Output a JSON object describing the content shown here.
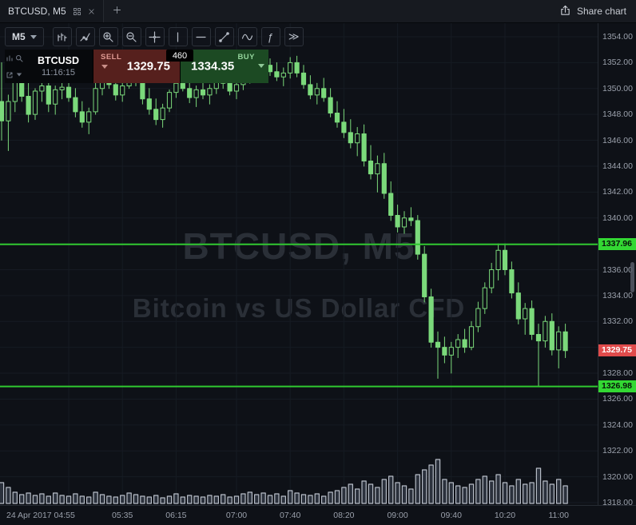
{
  "topbar": {
    "tab_title": "BTCUSD, M5",
    "share_label": "Share chart"
  },
  "toolbar": {
    "timeframe": "M5",
    "function_label": "ƒ",
    "more_label": "≫"
  },
  "instrument_panel": {
    "symbol": "BTCUSD",
    "time": "11:16:15",
    "sell_label": "SELL",
    "sell_price": "1329.75",
    "spread": "460",
    "buy_label": "BUY",
    "buy_price": "1334.35"
  },
  "watermark": {
    "line1": "BTCUSD, M5",
    "line2": "Bitcoin vs US Dollar CFD"
  },
  "price_axis": {
    "min": 1318,
    "max": 1354,
    "step": 2,
    "labels": [
      "1354.00",
      "1352.00",
      "1350.00",
      "1348.00",
      "1346.00",
      "1344.00",
      "1342.00",
      "1340.00",
      "1338.00",
      "1336.00",
      "1334.00",
      "1332.00",
      "1330.00",
      "1328.00",
      "1326.00",
      "1324.00",
      "1322.00",
      "1320.00",
      "1318.00"
    ]
  },
  "time_axis": {
    "labels": [
      {
        "text": "24 Apr 2017 04:55",
        "index": 10,
        "align": "left"
      },
      {
        "text": "05:35",
        "index": 18
      },
      {
        "text": "06:15",
        "index": 26
      },
      {
        "text": "07:00",
        "index": 35
      },
      {
        "text": "07:40",
        "index": 43
      },
      {
        "text": "08:20",
        "index": 51
      },
      {
        "text": "09:00",
        "index": 59
      },
      {
        "text": "09:40",
        "index": 67
      },
      {
        "text": "10:20",
        "index": 75
      },
      {
        "text": "11:00",
        "index": 83
      }
    ]
  },
  "levels": [
    {
      "price": 1337.96,
      "label": "1337.96"
    },
    {
      "price": 1326.98,
      "label": "1326.98"
    }
  ],
  "current_price": {
    "price": 1329.75,
    "label": "1329.75"
  },
  "colors": {
    "background": "#0e1117",
    "candle": "#7bd97b",
    "volume": "#2b313c",
    "grid": "#161b23",
    "level_line": "#30c930",
    "level_label_bg": "#33d833",
    "level_label_text": "#08140a",
    "price_label_bg": "#e04b4b",
    "price_label_text": "#ffffff",
    "axis_text": "#9aa0ab",
    "sell_bg": "#56201d",
    "buy_bg": "#1c4a23"
  },
  "chart_data": {
    "type": "candlestick",
    "symbol": "BTCUSD",
    "name": "Bitcoin vs US Dollar CFD",
    "interval": "M5",
    "date": "24 Apr 2017",
    "start_time": "04:05",
    "interval_minutes": 5,
    "price_range": [
      1318,
      1354
    ],
    "levels": [
      1337.96,
      1326.98
    ],
    "last_price": 1329.75,
    "sell": 1329.75,
    "buy": 1334.35,
    "spread_points": 460,
    "candles_format": [
      "open",
      "high",
      "low",
      "close",
      "volume"
    ],
    "candles": [
      [
        1349.0,
        1352.0,
        1346.0,
        1347.5,
        26
      ],
      [
        1347.5,
        1349.5,
        1345.2,
        1349.0,
        20
      ],
      [
        1349.0,
        1351.5,
        1348.2,
        1350.5,
        14
      ],
      [
        1350.5,
        1351.8,
        1349.0,
        1349.4,
        11
      ],
      [
        1349.4,
        1350.5,
        1347.4,
        1348.0,
        13
      ],
      [
        1348.0,
        1350.0,
        1347.6,
        1349.8,
        10
      ],
      [
        1349.8,
        1351.5,
        1349.0,
        1350.2,
        12
      ],
      [
        1350.2,
        1350.8,
        1348.2,
        1348.8,
        9
      ],
      [
        1348.8,
        1350.2,
        1348.0,
        1349.9,
        13
      ],
      [
        1349.9,
        1351.2,
        1349.2,
        1350.1,
        10
      ],
      [
        1350.1,
        1351.0,
        1349.0,
        1349.3,
        9
      ],
      [
        1349.3,
        1350.0,
        1347.8,
        1348.2,
        12
      ],
      [
        1348.2,
        1349.0,
        1347.0,
        1347.4,
        9
      ],
      [
        1347.4,
        1348.5,
        1346.5,
        1348.2,
        8
      ],
      [
        1348.2,
        1350.4,
        1348.0,
        1350.0,
        14
      ],
      [
        1350.0,
        1351.2,
        1349.5,
        1350.8,
        11
      ],
      [
        1350.8,
        1351.5,
        1350.0,
        1350.3,
        9
      ],
      [
        1350.3,
        1350.9,
        1349.1,
        1349.5,
        8
      ],
      [
        1349.5,
        1350.6,
        1349.0,
        1350.2,
        10
      ],
      [
        1350.2,
        1351.8,
        1350.0,
        1351.2,
        13
      ],
      [
        1351.2,
        1352.0,
        1350.2,
        1350.5,
        11
      ],
      [
        1350.5,
        1351.0,
        1348.8,
        1349.2,
        9
      ],
      [
        1349.2,
        1350.0,
        1348.0,
        1348.4,
        8
      ],
      [
        1348.4,
        1349.2,
        1347.2,
        1347.6,
        10
      ],
      [
        1347.6,
        1348.8,
        1347.0,
        1348.5,
        7
      ],
      [
        1348.5,
        1349.9,
        1348.2,
        1349.7,
        9
      ],
      [
        1349.7,
        1350.8,
        1349.3,
        1350.4,
        12
      ],
      [
        1350.4,
        1351.2,
        1349.8,
        1350.0,
        8
      ],
      [
        1350.0,
        1350.6,
        1348.9,
        1349.3,
        10
      ],
      [
        1349.3,
        1350.2,
        1348.6,
        1349.9,
        9
      ],
      [
        1349.9,
        1350.7,
        1349.2,
        1349.5,
        8
      ],
      [
        1349.5,
        1350.3,
        1348.8,
        1350.0,
        10
      ],
      [
        1350.0,
        1351.0,
        1349.6,
        1350.7,
        9
      ],
      [
        1350.7,
        1351.4,
        1350.0,
        1350.4,
        11
      ],
      [
        1350.4,
        1351.0,
        1349.5,
        1349.8,
        8
      ],
      [
        1349.8,
        1350.6,
        1349.2,
        1350.3,
        9
      ],
      [
        1350.3,
        1351.3,
        1349.9,
        1351.0,
        12
      ],
      [
        1351.0,
        1351.9,
        1350.4,
        1351.5,
        14
      ],
      [
        1351.5,
        1352.2,
        1350.8,
        1351.1,
        11
      ],
      [
        1351.1,
        1352.0,
        1350.5,
        1351.8,
        13
      ],
      [
        1351.8,
        1352.3,
        1351.0,
        1351.3,
        10
      ],
      [
        1351.3,
        1352.0,
        1350.6,
        1350.9,
        12
      ],
      [
        1350.9,
        1351.6,
        1350.2,
        1351.2,
        9
      ],
      [
        1351.2,
        1352.4,
        1350.8,
        1352.0,
        16
      ],
      [
        1352.0,
        1352.5,
        1350.9,
        1351.2,
        13
      ],
      [
        1351.2,
        1351.8,
        1350.0,
        1350.3,
        11
      ],
      [
        1350.3,
        1351.0,
        1349.2,
        1349.5,
        10
      ],
      [
        1349.5,
        1350.4,
        1348.8,
        1350.0,
        12
      ],
      [
        1350.0,
        1350.8,
        1349.0,
        1349.3,
        9
      ],
      [
        1349.3,
        1350.0,
        1347.8,
        1348.1,
        14
      ],
      [
        1348.1,
        1349.0,
        1347.0,
        1347.4,
        16
      ],
      [
        1347.4,
        1348.4,
        1346.2,
        1346.6,
        20
      ],
      [
        1346.6,
        1347.6,
        1345.4,
        1345.8,
        24
      ],
      [
        1345.8,
        1347.0,
        1344.8,
        1346.5,
        18
      ],
      [
        1346.5,
        1347.2,
        1344.0,
        1344.4,
        28
      ],
      [
        1344.4,
        1345.6,
        1343.0,
        1343.4,
        24
      ],
      [
        1343.4,
        1344.8,
        1342.0,
        1344.2,
        20
      ],
      [
        1344.2,
        1345.0,
        1341.5,
        1341.9,
        30
      ],
      [
        1341.9,
        1342.8,
        1339.8,
        1340.2,
        34
      ],
      [
        1340.2,
        1341.0,
        1338.9,
        1339.3,
        26
      ],
      [
        1339.3,
        1340.5,
        1338.8,
        1340.0,
        22
      ],
      [
        1340.0,
        1340.8,
        1339.4,
        1339.8,
        18
      ],
      [
        1339.8,
        1340.2,
        1336.8,
        1337.2,
        36
      ],
      [
        1337.2,
        1337.8,
        1333.5,
        1333.9,
        42
      ],
      [
        1333.9,
        1334.5,
        1330.0,
        1330.4,
        48
      ],
      [
        1330.4,
        1331.2,
        1327.6,
        1330.0,
        55
      ],
      [
        1330.0,
        1330.8,
        1328.8,
        1329.4,
        30
      ],
      [
        1329.4,
        1330.4,
        1328.0,
        1330.0,
        26
      ],
      [
        1330.0,
        1331.0,
        1329.2,
        1330.6,
        22
      ],
      [
        1330.6,
        1331.4,
        1329.6,
        1330.0,
        20
      ],
      [
        1330.0,
        1332.0,
        1329.8,
        1331.6,
        24
      ],
      [
        1331.6,
        1333.5,
        1331.2,
        1333.0,
        30
      ],
      [
        1333.0,
        1335.0,
        1332.6,
        1334.6,
        34
      ],
      [
        1334.6,
        1336.5,
        1334.2,
        1336.0,
        28
      ],
      [
        1336.0,
        1338.0,
        1335.2,
        1337.5,
        36
      ],
      [
        1337.5,
        1338.0,
        1335.6,
        1336.0,
        26
      ],
      [
        1336.0,
        1336.6,
        1333.8,
        1334.2,
        22
      ],
      [
        1334.2,
        1335.0,
        1331.8,
        1332.2,
        30
      ],
      [
        1332.2,
        1333.4,
        1331.0,
        1333.0,
        24
      ],
      [
        1333.0,
        1333.6,
        1330.6,
        1331.0,
        26
      ],
      [
        1331.0,
        1331.8,
        1327.0,
        1330.5,
        44
      ],
      [
        1330.5,
        1332.4,
        1330.0,
        1332.0,
        28
      ],
      [
        1332.0,
        1332.6,
        1329.4,
        1329.8,
        24
      ],
      [
        1329.8,
        1331.6,
        1328.4,
        1331.2,
        30
      ],
      [
        1331.2,
        1331.8,
        1329.2,
        1329.75,
        22
      ]
    ]
  }
}
